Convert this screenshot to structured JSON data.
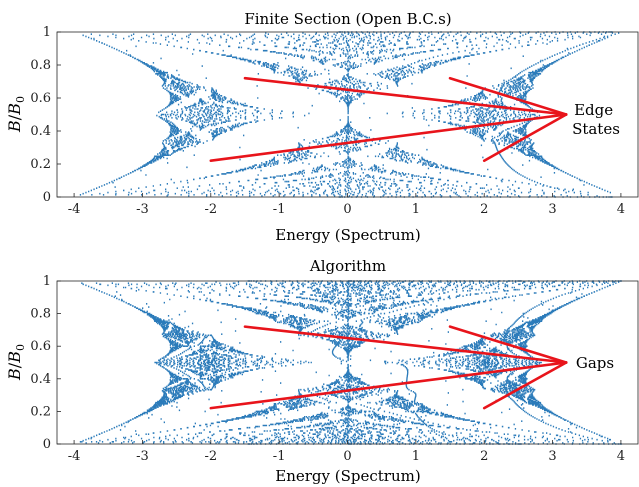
{
  "chart_data": [
    {
      "type": "scatter",
      "title": "Finite Section (Open B.C.s)",
      "xlabel": "Energy (Spectrum)",
      "ylabel_main": "B",
      "ylabel_slash": "/",
      "ylabel_b0": "B",
      "ylabel_sub": "0",
      "xlim": [
        -4.25,
        4.25
      ],
      "ylim": [
        0,
        1
      ],
      "xticks": [
        "-4",
        "-3",
        "-2",
        "-1",
        "0",
        "1",
        "2",
        "3",
        "4"
      ],
      "yticks": [
        "0",
        "0.2",
        "0.4",
        "0.6",
        "0.8",
        "1"
      ],
      "point_color": "#2b7bba",
      "arrow_color": "#e8141b",
      "annotation_lines": [
        "Edge",
        "States"
      ],
      "annotation_target": [
        3.2,
        0.5
      ],
      "arrows": [
        {
          "from": [
            -1.5,
            0.72
          ],
          "to": [
            3.2,
            0.5
          ]
        },
        {
          "from": [
            1.5,
            0.72
          ],
          "to": [
            3.2,
            0.5
          ]
        },
        {
          "from": [
            -2.0,
            0.22
          ],
          "to": [
            3.2,
            0.5
          ]
        },
        {
          "from": [
            2.0,
            0.22
          ],
          "to": [
            3.2,
            0.5
          ]
        }
      ]
    },
    {
      "type": "scatter",
      "title": "Algorithm",
      "xlabel": "Energy (Spectrum)",
      "ylabel_main": "B",
      "ylabel_slash": "/",
      "ylabel_b0": "B",
      "ylabel_sub": "0",
      "xlim": [
        -4.25,
        4.25
      ],
      "ylim": [
        0,
        1
      ],
      "xticks": [
        "-4",
        "-3",
        "-2",
        "-1",
        "0",
        "1",
        "2",
        "3",
        "4"
      ],
      "yticks": [
        "0",
        "0.2",
        "0.4",
        "0.6",
        "0.8",
        "1"
      ],
      "point_color": "#2b7bba",
      "arrow_color": "#e8141b",
      "annotation_lines": [
        "Gaps"
      ],
      "annotation_target": [
        3.2,
        0.5
      ],
      "arrows": [
        {
          "from": [
            -1.5,
            0.72
          ],
          "to": [
            3.2,
            0.5
          ]
        },
        {
          "from": [
            1.5,
            0.72
          ],
          "to": [
            3.2,
            0.5
          ]
        },
        {
          "from": [
            -2.0,
            0.22
          ],
          "to": [
            3.2,
            0.5
          ]
        },
        {
          "from": [
            2.0,
            0.22
          ],
          "to": [
            3.2,
            0.5
          ]
        }
      ]
    }
  ]
}
